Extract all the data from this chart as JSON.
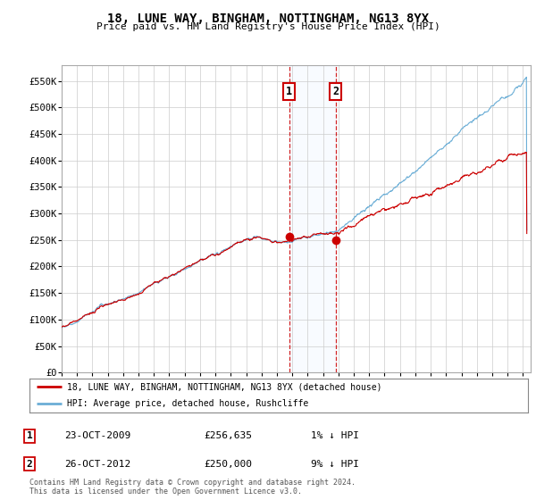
{
  "title": "18, LUNE WAY, BINGHAM, NOTTINGHAM, NG13 8YX",
  "subtitle": "Price paid vs. HM Land Registry's House Price Index (HPI)",
  "ylabel_ticks": [
    "£0",
    "£50K",
    "£100K",
    "£150K",
    "£200K",
    "£250K",
    "£300K",
    "£350K",
    "£400K",
    "£450K",
    "£500K",
    "£550K"
  ],
  "ytick_values": [
    0,
    50000,
    100000,
    150000,
    200000,
    250000,
    300000,
    350000,
    400000,
    450000,
    500000,
    550000
  ],
  "ylim": [
    0,
    580000
  ],
  "sale1": {
    "date_num": 2009.81,
    "price": 256635,
    "label": "1",
    "date_str": "23-OCT-2009",
    "note": "1% ↓ HPI"
  },
  "sale2": {
    "date_num": 2012.81,
    "price": 250000,
    "label": "2",
    "date_str": "26-OCT-2012",
    "note": "9% ↓ HPI"
  },
  "hpi_color": "#6baed6",
  "price_color": "#cc0000",
  "sale_dot_color": "#cc0000",
  "background_color": "#ffffff",
  "grid_color": "#cccccc",
  "shade_color": "#ddeeff",
  "legend_line1": "18, LUNE WAY, BINGHAM, NOTTINGHAM, NG13 8YX (detached house)",
  "legend_line2": "HPI: Average price, detached house, Rushcliffe",
  "footnote": "Contains HM Land Registry data © Crown copyright and database right 2024.\nThis data is licensed under the Open Government Licence v3.0.",
  "xmin": 1995.0,
  "xmax": 2025.5
}
